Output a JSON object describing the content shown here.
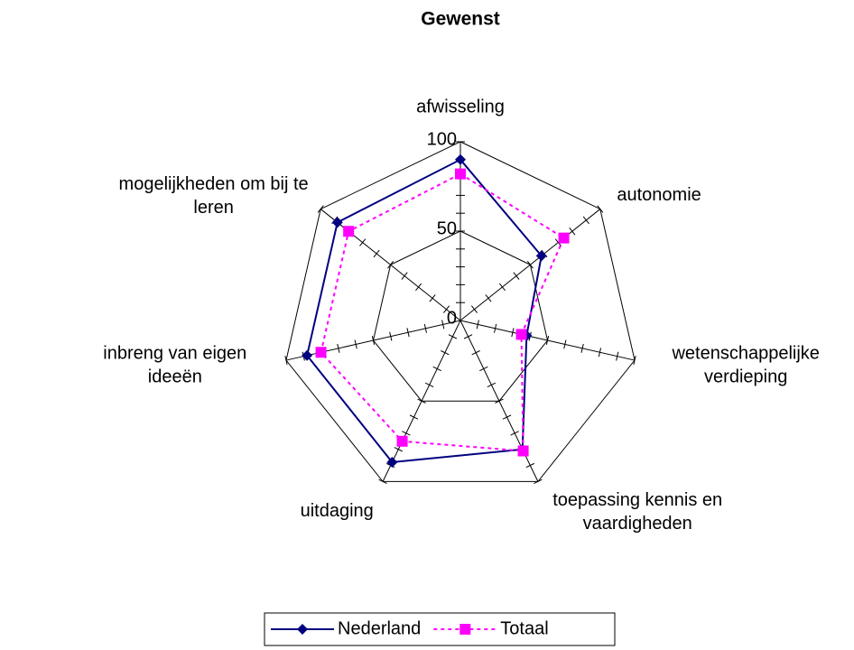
{
  "chart_data": {
    "type": "radar",
    "title": "Gewenst",
    "categories": [
      [
        "afwisseling"
      ],
      [
        "autonomie"
      ],
      [
        "wetenschappelijke",
        "verdieping"
      ],
      [
        "toepassing kennis en",
        "vaardigheden"
      ],
      [
        "uitdaging"
      ],
      [
        "inbreng van eigen",
        "ideeën"
      ],
      [
        "mogelijkheden om bij te",
        "leren"
      ]
    ],
    "series": [
      {
        "name": "Nederland",
        "color": "#000080",
        "marker": "diamond",
        "dash": false,
        "values": [
          90,
          58,
          38,
          80,
          88,
          88,
          88
        ]
      },
      {
        "name": "Totaal",
        "color": "#ff00ff",
        "marker": "square",
        "dash": true,
        "values": [
          82,
          74,
          35,
          81,
          75,
          80,
          80
        ]
      }
    ],
    "ylim": [
      0,
      100
    ],
    "yticks": [
      0,
      50,
      100
    ],
    "minor_step": 10,
    "legend": "bottom"
  }
}
